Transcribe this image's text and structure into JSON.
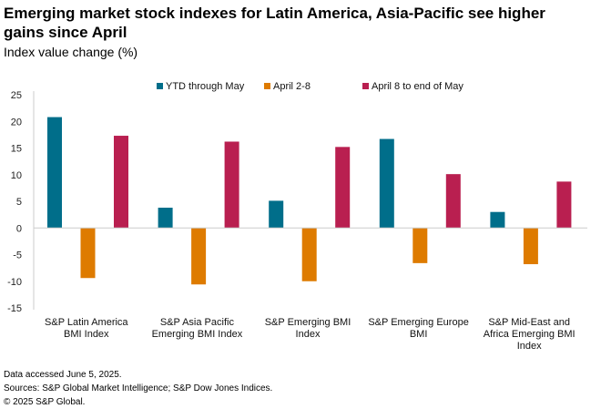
{
  "chart_data": {
    "type": "bar",
    "title": "Emerging market stock indexes for Latin America, Asia-Pacific see higher gains since April",
    "subtitle": "Index value change (%)",
    "categories": [
      [
        "S&P Latin America",
        "BMI Index"
      ],
      [
        "S&P Asia Pacific",
        "Emerging BMI Index"
      ],
      [
        "S&P Emerging BMI",
        "Index"
      ],
      [
        "S&P Emerging Europe",
        "BMI"
      ],
      [
        "S&P Mid-East and",
        "Africa Emerging BMI",
        "Index"
      ]
    ],
    "series": [
      {
        "name": "YTD through May",
        "color": "#006e8a",
        "values": [
          20.8,
          3.8,
          5.1,
          16.7,
          3.0
        ]
      },
      {
        "name": "April 2-8",
        "color": "#de7b00",
        "values": [
          -9.4,
          -10.6,
          -10.0,
          -6.6,
          -6.8
        ]
      },
      {
        "name": "April 8 to end of May",
        "color": "#b91f50",
        "values": [
          17.3,
          16.2,
          15.2,
          10.1,
          8.7
        ]
      }
    ],
    "ylim": [
      -15,
      25
    ],
    "yticks": [
      25,
      20,
      15,
      10,
      5,
      0,
      -5,
      -10,
      -15
    ],
    "legend": "top-center",
    "grid": false
  },
  "footnotes": [
    "Data accessed June 5, 2025.",
    "Sources: S&P Global Market Intelligence; S&P Dow Jones Indices.",
    "© 2025 S&P Global."
  ]
}
